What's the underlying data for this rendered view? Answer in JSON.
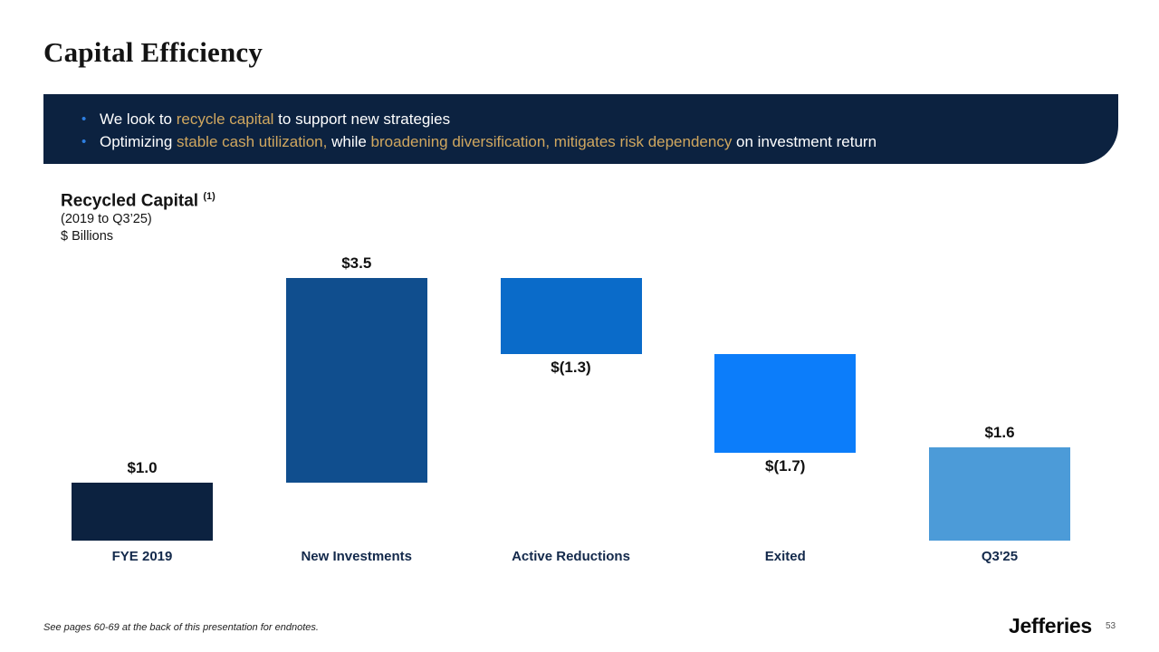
{
  "slide": {
    "title": "Capital Efficiency",
    "footnote": "See pages 60-69 at the back of this presentation for endnotes.",
    "brand": "Jefferies",
    "page_number": "53"
  },
  "banner": {
    "background_color": "#0C2240",
    "text_color": "#FFFFFF",
    "highlight_color": "#D0A75F",
    "bullet_color": "#2E7FE1",
    "bullets": [
      {
        "segments": [
          {
            "text": "We look to ",
            "highlight": false
          },
          {
            "text": "recycle capital",
            "highlight": true
          },
          {
            "text": " to support new strategies",
            "highlight": false
          }
        ]
      },
      {
        "segments": [
          {
            "text": "Optimizing ",
            "highlight": false
          },
          {
            "text": "stable cash utilization,",
            "highlight": true
          },
          {
            "text": " while ",
            "highlight": false
          },
          {
            "text": "broadening diversification, mitigates risk dependency",
            "highlight": true
          },
          {
            "text": " on investment return",
            "highlight": false
          }
        ]
      }
    ]
  },
  "chart_data": {
    "type": "bar",
    "subtype": "waterfall",
    "title": "Recycled Capital",
    "title_superscript": "(1)",
    "subtitle": "(2019 to Q3’25)",
    "unit_label": "$ Billions",
    "categories": [
      "FYE 2019",
      "New Investments",
      "Active Reductions",
      "Exited",
      "Q3'25"
    ],
    "ylim": [
      0,
      4.6
    ],
    "gridlines": false,
    "legend": "none",
    "bars": [
      {
        "category": "FYE 2019",
        "value": 1.0,
        "display": "$1.0",
        "kind": "start",
        "color": "#0C2240",
        "label_position": "above"
      },
      {
        "category": "New Investments",
        "value": 3.5,
        "display": "$3.5",
        "kind": "increase",
        "color": "#104E8E",
        "label_position": "above"
      },
      {
        "category": "Active Reductions",
        "value": -1.3,
        "display": "$(1.3)",
        "kind": "decrease",
        "color": "#0A6BC9",
        "label_position": "below"
      },
      {
        "category": "Exited",
        "value": -1.7,
        "display": "$(1.7)",
        "kind": "decrease",
        "color": "#0C7DFA",
        "label_position": "below"
      },
      {
        "category": "Q3'25",
        "value": 1.6,
        "display": "$1.6",
        "kind": "total",
        "color": "#4C9BD8",
        "label_position": "above"
      }
    ]
  }
}
